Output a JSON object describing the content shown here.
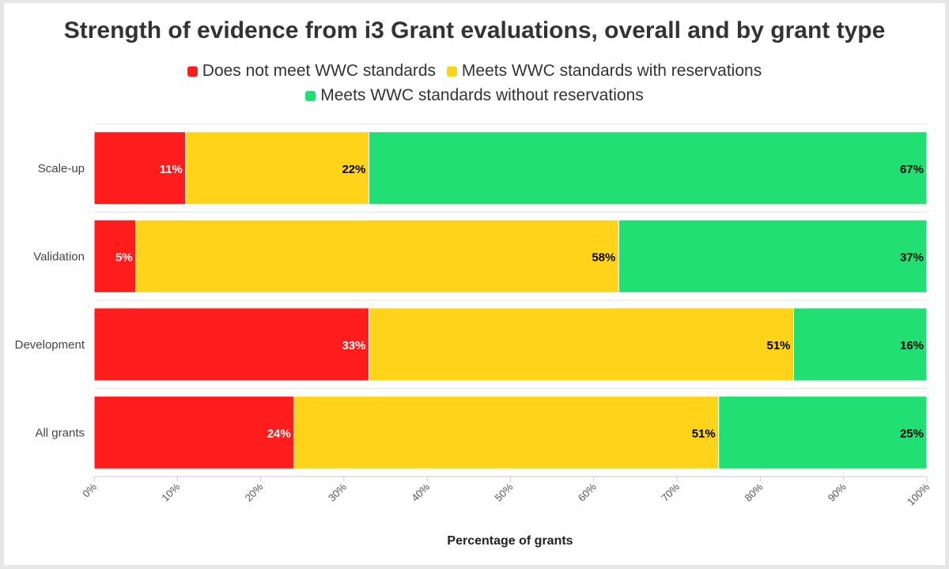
{
  "chart_data": {
    "type": "bar",
    "orientation": "horizontal",
    "stacked": true,
    "title": "Strength of evidence from i3 Grant evaluations, overall and by grant type",
    "xlabel": "Percentage of grants",
    "ylabel": "",
    "xlim": [
      0,
      100
    ],
    "x_ticks": [
      "0%",
      "10%",
      "20%",
      "30%",
      "40%",
      "50%",
      "60%",
      "70%",
      "80%",
      "90%",
      "100%"
    ],
    "categories": [
      "Scale-up",
      "Validation",
      "Development",
      "All grants"
    ],
    "series": [
      {
        "name": "Does not meet WWC standards",
        "color": "#ff1c1c",
        "label_color": "#ffffff",
        "values": [
          11,
          5,
          33,
          24
        ],
        "labels": [
          "11%",
          "5%",
          "33%",
          "24%"
        ]
      },
      {
        "name": "Meets WWC standards with reservations",
        "color": "#ffd31a",
        "label_color": "#000000",
        "values": [
          22,
          58,
          51,
          51
        ],
        "labels": [
          "22%",
          "58%",
          "51%",
          "51%"
        ]
      },
      {
        "name": "Meets WWC standards without reservations",
        "color": "#21df72",
        "label_color": "#000000",
        "values": [
          67,
          37,
          16,
          25
        ],
        "labels": [
          "67%",
          "37%",
          "16%",
          "25%"
        ]
      }
    ],
    "legend_position": "top",
    "grid": true
  }
}
